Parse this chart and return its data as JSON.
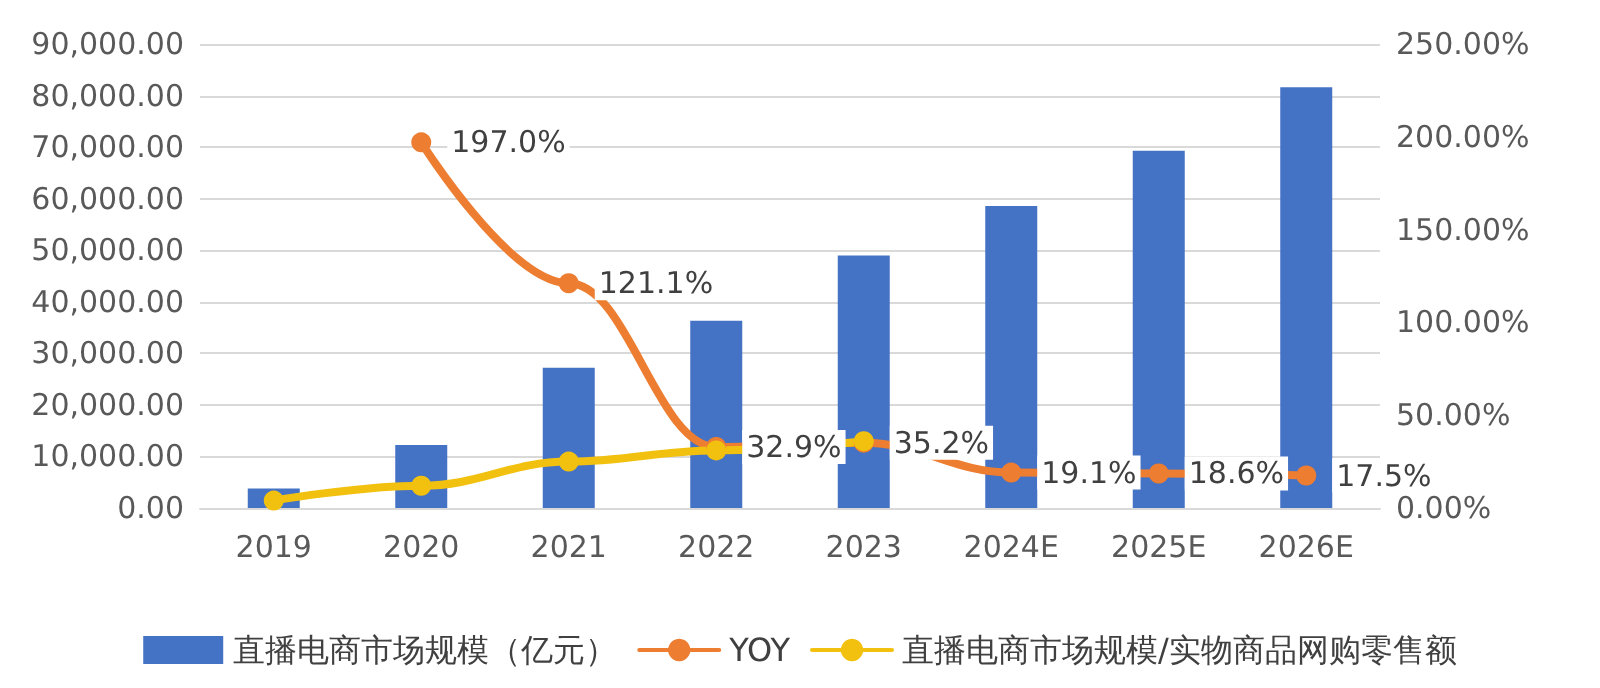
{
  "chart_data": {
    "type": "bar",
    "categories": [
      "2019",
      "2020",
      "2021",
      "2022",
      "2023",
      "2024E",
      "2025E",
      "2026E"
    ],
    "series": [
      {
        "name": "直播电商市场规模（亿元）",
        "color": "#4472c4",
        "values": [
          3800,
          12200,
          27200,
          36300,
          49000,
          58600,
          69300,
          81600
        ]
      },
      {
        "name": "YOY",
        "type": "line",
        "axis": "y2",
        "color": "#ed7d31",
        "values": [
          null,
          197.0,
          121.1,
          32.9,
          35.2,
          19.1,
          18.6,
          17.5
        ],
        "value_labels": [
          null,
          "197.0%",
          "121.1%",
          "32.9%",
          "35.2%",
          "19.1%",
          "18.6%",
          "17.5%"
        ]
      },
      {
        "name": "直播电商市场规模/实物商品网购零售额",
        "type": "line",
        "axis": "y2",
        "color": "#f2c10f",
        "values": [
          4,
          12,
          25,
          31,
          36,
          null,
          null,
          null
        ]
      }
    ],
    "ylim": [
      0,
      90000
    ],
    "yticks": [
      {
        "value": 0,
        "label": "0.00"
      },
      {
        "value": 10000,
        "label": "10,000.00"
      },
      {
        "value": 20000,
        "label": "20,000.00"
      },
      {
        "value": 30000,
        "label": "30,000.00"
      },
      {
        "value": 40000,
        "label": "40,000.00"
      },
      {
        "value": 50000,
        "label": "50,000.00"
      },
      {
        "value": 60000,
        "label": "60,000.00"
      },
      {
        "value": 70000,
        "label": "70,000.00"
      },
      {
        "value": 80000,
        "label": "80,000.00"
      },
      {
        "value": 90000,
        "label": "90,000.00"
      }
    ],
    "y2lim": [
      0,
      250
    ],
    "y2ticks": [
      {
        "value": 0,
        "label": "0.00%"
      },
      {
        "value": 50,
        "label": "50.00%"
      },
      {
        "value": 100,
        "label": "100.00%"
      },
      {
        "value": 150,
        "label": "150.00%"
      },
      {
        "value": 200,
        "label": "200.00%"
      },
      {
        "value": 250,
        "label": "250.00%"
      }
    ],
    "grid": "y",
    "legend": "bottom",
    "marker": "circle",
    "line_style": "solid"
  }
}
